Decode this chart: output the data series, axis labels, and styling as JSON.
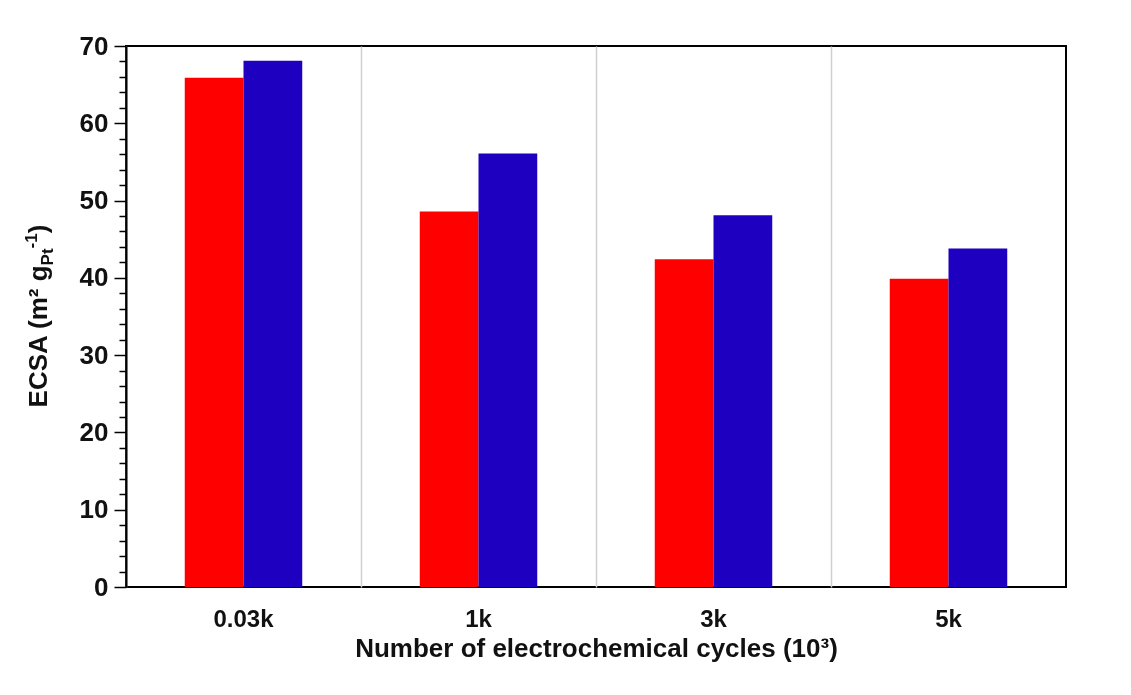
{
  "chart_data": {
    "type": "bar",
    "xlabel": "Number of electrochemical cycles (10³)",
    "ylabel": "ECSA (m² g$_{Pt}$$^{-1}$)",
    "categories": [
      "0.03k",
      "1k",
      "3k",
      "5k"
    ],
    "series": [
      {
        "color": "#ff0000",
        "values": [
          65.9,
          48.6,
          42.4,
          39.9
        ]
      },
      {
        "color": "#1e00c0",
        "values": [
          68.1,
          56.1,
          48.1,
          43.8
        ]
      }
    ],
    "ylim": [
      0,
      70
    ],
    "yticks": [
      0,
      {
        "value": 2,
        "label": null
      },
      {
        "value": 4,
        "label": null
      },
      {
        "value": 6,
        "label": null
      },
      {
        "value": 8,
        "label": null
      },
      10,
      {
        "value": 12,
        "label": null
      },
      {
        "value": 14,
        "label": null
      },
      {
        "value": 16,
        "label": null
      },
      {
        "value": 18,
        "label": null
      },
      20,
      {
        "value": 22,
        "label": null
      },
      {
        "value": 24,
        "label": null
      },
      {
        "value": 26,
        "label": null
      },
      {
        "value": 28,
        "label": null
      },
      30,
      {
        "value": 32,
        "label": null
      },
      {
        "value": 34,
        "label": null
      },
      {
        "value": 36,
        "label": null
      },
      {
        "value": 38,
        "label": null
      },
      40,
      {
        "value": 42,
        "label": null
      },
      {
        "value": 44,
        "label": null
      },
      {
        "value": 46,
        "label": null
      },
      {
        "value": 48,
        "label": null
      },
      50,
      {
        "value": 52,
        "label": null
      },
      {
        "value": 54,
        "label": null
      },
      {
        "value": 56,
        "label": null
      },
      {
        "value": 58,
        "label": null
      },
      60,
      {
        "value": 62,
        "label": null
      },
      {
        "value": 64,
        "label": null
      },
      {
        "value": 66,
        "label": null
      },
      {
        "value": 68,
        "label": null
      },
      70
    ],
    "grid": "x",
    "legend": false
  }
}
